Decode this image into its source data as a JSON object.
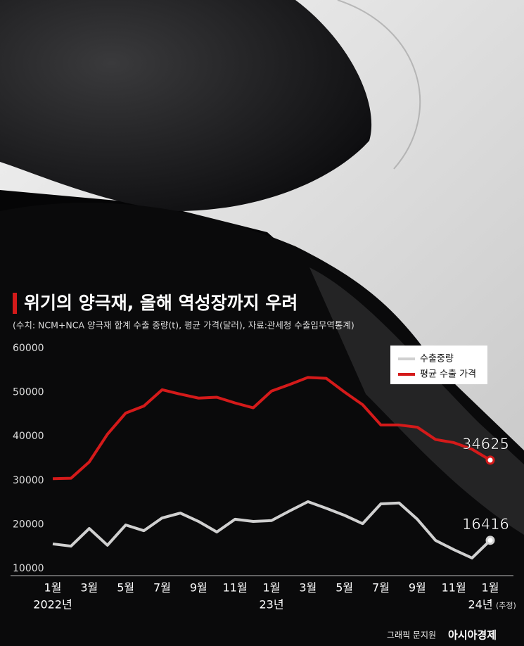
{
  "chart_data": {
    "type": "line",
    "title": "위기의 양극재, 올해 역성장까지 우려",
    "subtitle": "(수치: NCM+NCA 양극재 합계 수출 중량(t), 평균 가격(달러), 자료:관세청 수출입무역통계)",
    "categories": [
      "1월",
      null,
      "3월",
      null,
      "5월",
      null,
      "7월",
      null,
      "9월",
      null,
      "11월",
      null,
      "1월",
      null,
      "3월",
      null,
      "5월",
      null,
      "7월",
      null,
      "9월",
      null,
      "11월",
      null,
      "1월"
    ],
    "year_labels": [
      "2022년",
      null,
      null,
      null,
      null,
      null,
      null,
      null,
      null,
      null,
      null,
      null,
      "23년",
      null,
      null,
      null,
      null,
      null,
      null,
      null,
      null,
      null,
      null,
      null,
      "24년"
    ],
    "note": "(추정)",
    "series": [
      {
        "name": "수출중량",
        "color": "#d0d0d0",
        "values": [
          15600,
          15100,
          19100,
          15300,
          19900,
          18600,
          21500,
          22600,
          20700,
          18300,
          21200,
          20700,
          20900,
          23100,
          25200,
          23700,
          22100,
          20200,
          24700,
          24900,
          21200,
          16400,
          14300,
          12400,
          16416
        ]
      },
      {
        "name": "평균 수출 가격",
        "color": "#d41a1a",
        "values": [
          30400,
          30500,
          34200,
          40500,
          45300,
          46900,
          50600,
          49600,
          48700,
          48900,
          47600,
          46500,
          50300,
          51800,
          53400,
          53200,
          50100,
          47200,
          42600,
          42600,
          42100,
          39300,
          38600,
          37100,
          34625
        ]
      }
    ],
    "ylim": [
      10000,
      60000
    ],
    "yticks": [
      10000,
      20000,
      30000,
      40000,
      50000,
      60000
    ],
    "legend": "upper-right",
    "credit": "그래픽 문지원",
    "publisher": "아시아경제"
  }
}
